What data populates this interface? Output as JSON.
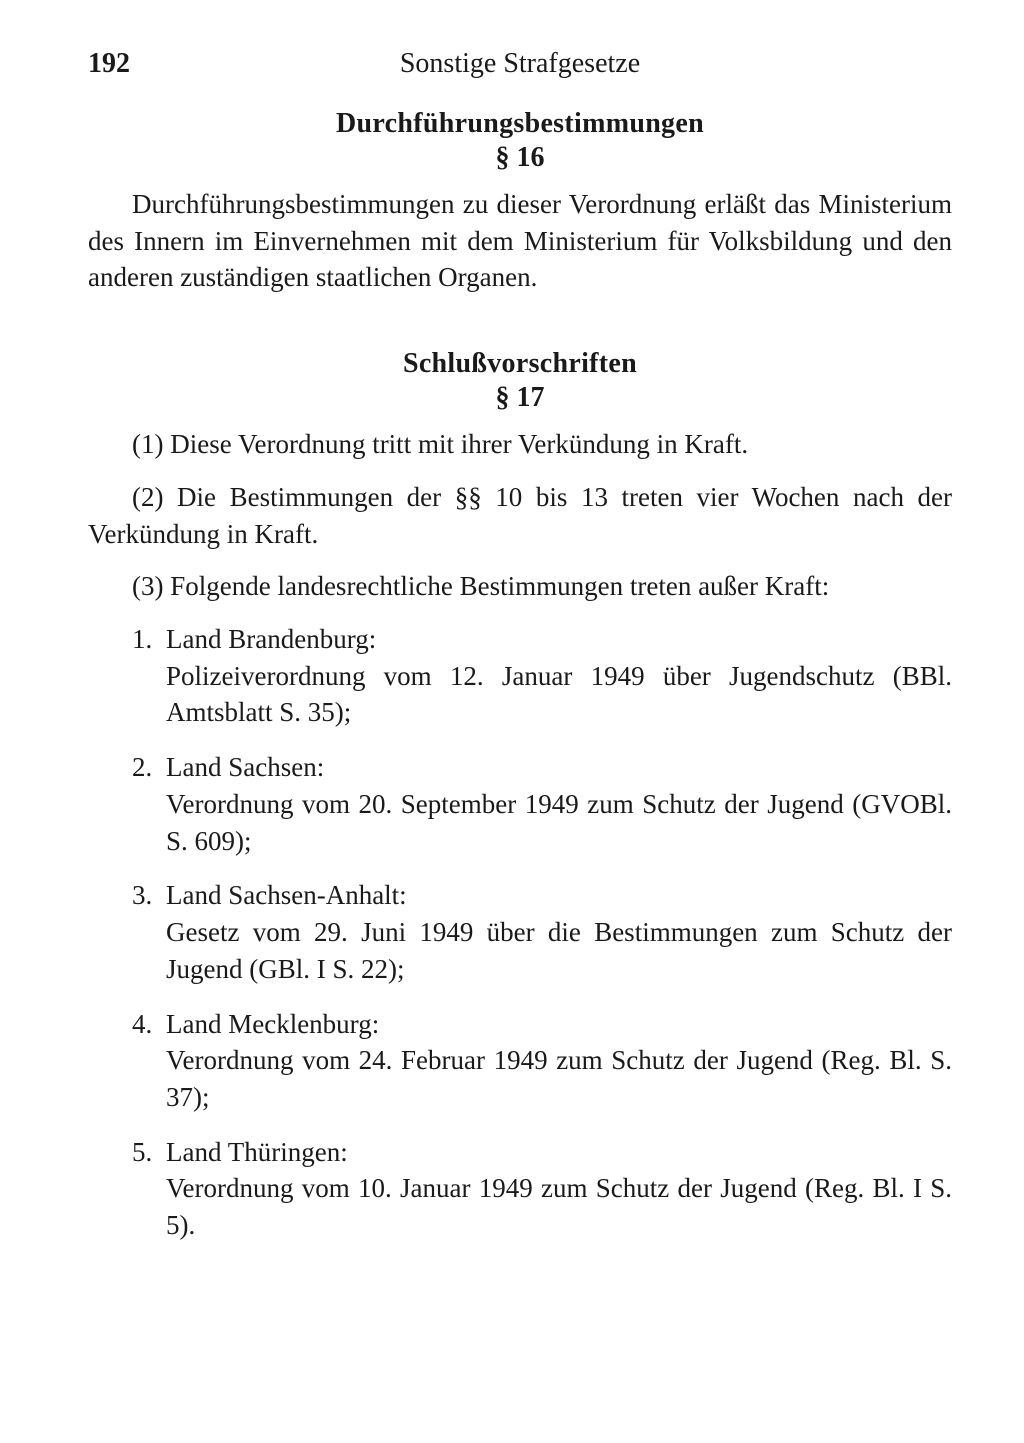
{
  "header": {
    "page_number": "192",
    "running_head": "Sonstige Strafgesetze"
  },
  "section16": {
    "heading": "Durchführungsbestimmungen",
    "number": "§ 16",
    "paragraph": "Durchführungsbestimmungen zu dieser Verordnung erläßt das Ministerium des Innern im Einvernehmen mit dem Ministerium für Volksbildung und den anderen zuständigen staatlichen Organen."
  },
  "section17": {
    "heading": "Schlußvorschriften",
    "number": "§ 17",
    "para1": "(1) Diese Verordnung tritt mit ihrer Verkündung in Kraft.",
    "para2": "(2) Die Bestimmungen der §§ 10 bis 13 treten vier Wochen nach der Verkündung in Kraft.",
    "para3": "(3) Folgende landesrechtliche Bestimmungen treten außer Kraft:",
    "items": [
      {
        "num": "1.",
        "title": "Land Brandenburg:",
        "body": "Polizeiverordnung vom 12. Januar 1949 über Jugendschutz (BBl. Amtsblatt S. 35);"
      },
      {
        "num": "2.",
        "title": "Land Sachsen:",
        "body": "Verordnung vom 20. September 1949 zum Schutz der Jugend (GVOBl. S. 609);"
      },
      {
        "num": "3.",
        "title": "Land Sachsen-Anhalt:",
        "body": "Gesetz vom 29. Juni 1949 über die Bestimmungen zum Schutz der Jugend (GBl. I S. 22);"
      },
      {
        "num": "4.",
        "title": "Land Mecklenburg:",
        "body": "Verordnung vom 24. Februar 1949 zum Schutz der Jugend (Reg. Bl. S. 37);"
      },
      {
        "num": "5.",
        "title": "Land Thüringen:",
        "body": "Verordnung vom 10. Januar 1949 zum Schutz der Jugend (Reg. Bl. I S. 5)."
      }
    ]
  }
}
